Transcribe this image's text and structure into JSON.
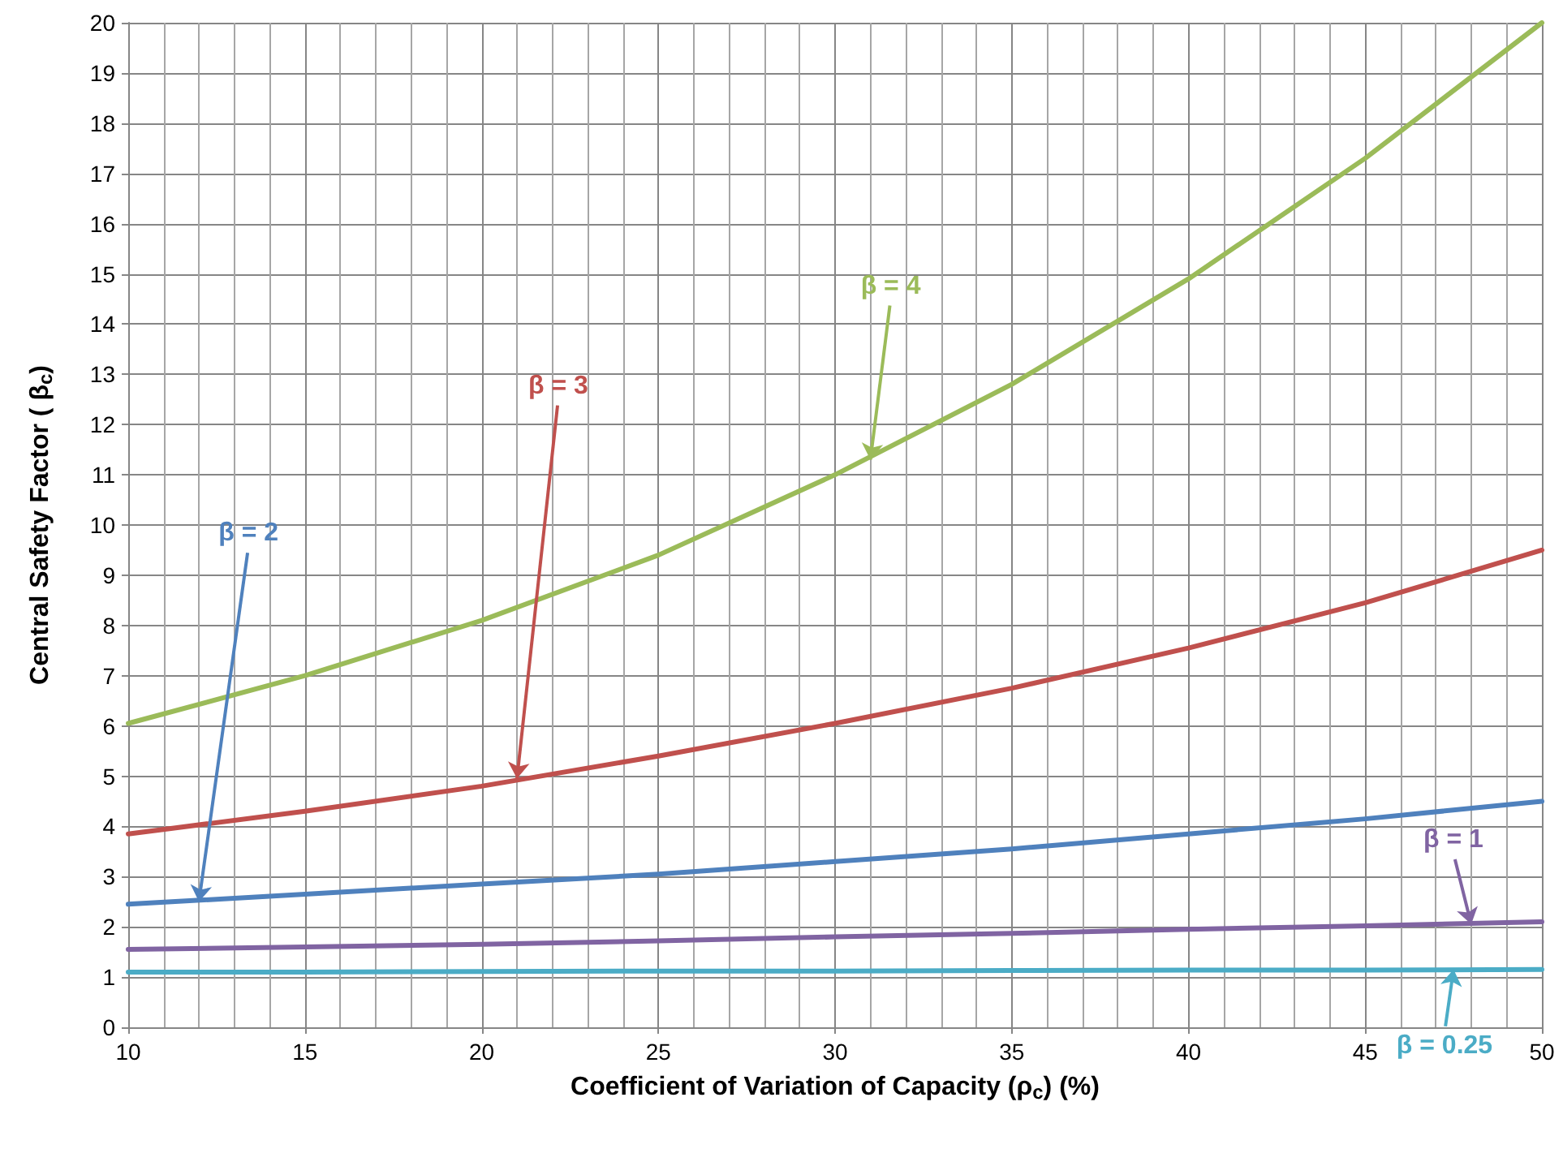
{
  "chart_data": {
    "type": "line",
    "xlabel": "Coefficient of Variation of Capacity (ρ$_{c}$) (%)",
    "ylabel": "Central Safety Factor ( β$_{c}$)",
    "x": [
      10,
      15,
      20,
      25,
      30,
      35,
      40,
      45,
      50
    ],
    "series": [
      {
        "color": "#9bbb59",
        "values": [
          6.05,
          7.0,
          8.1,
          9.4,
          11.0,
          12.8,
          14.9,
          17.3,
          20.0
        ]
      },
      {
        "color": "#c0504d",
        "values": [
          3.85,
          4.3,
          4.8,
          5.4,
          6.05,
          6.75,
          7.55,
          8.45,
          9.5
        ]
      },
      {
        "color": "#4f81bd",
        "values": [
          2.45,
          2.65,
          2.85,
          3.05,
          3.3,
          3.55,
          3.85,
          4.15,
          4.5
        ]
      },
      {
        "color": "#8064a2",
        "values": [
          1.55,
          1.6,
          1.65,
          1.72,
          1.8,
          1.87,
          1.95,
          2.02,
          2.1
        ]
      },
      {
        "color": "#4bacc6",
        "values": [
          1.1,
          1.1,
          1.11,
          1.12,
          1.12,
          1.13,
          1.14,
          1.14,
          1.15
        ]
      }
    ],
    "annotations": [
      {
        "text": "β = 4",
        "x": 31,
        "y": 11.3
      },
      {
        "text": "β = 3",
        "x": 21,
        "y": 4.95
      },
      {
        "text": "β = 2",
        "x": 12,
        "y": 2.5
      },
      {
        "text": "β = 1",
        "x": 48,
        "y": 2.05
      },
      {
        "text": "β = 0.25",
        "x": 47.5,
        "y": 1.15
      }
    ],
    "xlim": [
      10,
      50
    ],
    "xticks": [
      10,
      15,
      20,
      25,
      30,
      35,
      40,
      45,
      50
    ],
    "ylim": [
      0,
      20
    ],
    "yticks": [
      0,
      1,
      2,
      3,
      4,
      5,
      6,
      7,
      8,
      9,
      10,
      11,
      12,
      13,
      14,
      15,
      16,
      17,
      18,
      19,
      20
    ],
    "grid": true,
    "marker": "none",
    "line_style": "solid"
  }
}
